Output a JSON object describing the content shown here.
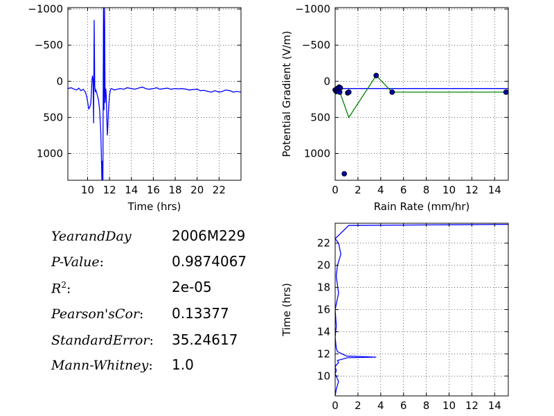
{
  "stats": [
    {
      "label": "YearandDay",
      "value": "2006M229",
      "colon": ""
    },
    {
      "label": "P-Value",
      "value": "0.9874067",
      "colon": ":"
    },
    {
      "label": "R",
      "sup": "2",
      "value": "2e-05",
      "colon": ":"
    },
    {
      "label": "Pearson'sCor",
      "value": "0.13377",
      "colon": ":"
    },
    {
      "label": "StandardError",
      "value": "35.24617",
      "colon": ":"
    },
    {
      "label": "Mann-Whitney",
      "value": "1.0",
      "colon": ":"
    }
  ],
  "chart_data": [
    {
      "id": "pg-time",
      "type": "line",
      "xlabel": "Time (hrs)",
      "ylabel": "",
      "xlim": [
        8.2,
        24
      ],
      "ylim": [
        1370,
        -1020
      ],
      "xticks": [
        10,
        12,
        14,
        16,
        18,
        20,
        22
      ],
      "yticks": [
        -1000,
        -500,
        0,
        500,
        1000
      ],
      "ytick_labels": [
        "−1000",
        "−500",
        "0",
        "500",
        "1000"
      ],
      "grid": true,
      "series": [
        {
          "color": "#0000ff",
          "x": [
            8.2,
            8.5,
            8.8,
            9.0,
            9.2,
            9.4,
            9.6,
            9.8,
            9.9,
            10.0,
            10.1,
            10.2,
            10.3,
            10.35,
            10.4,
            10.45,
            10.5,
            10.55,
            10.6,
            10.65,
            10.7,
            10.75,
            10.8,
            10.9,
            11.0,
            11.1,
            11.2,
            11.25,
            11.3,
            11.35,
            11.4,
            11.45,
            11.5,
            11.55,
            11.6,
            11.65,
            11.7,
            11.75,
            11.8,
            11.85,
            11.9,
            11.95,
            12.0,
            12.05,
            12.1,
            12.2,
            12.4,
            12.7,
            13.0,
            13.3,
            13.6,
            14.0,
            14.3,
            14.6,
            15.0,
            15.3,
            15.6,
            16.0,
            16.3,
            16.6,
            17.0,
            17.3,
            17.6,
            18.0,
            18.3,
            18.6,
            19.0,
            19.3,
            19.6,
            20.0,
            20.3,
            20.6,
            21.0,
            21.3,
            21.6,
            22.0,
            22.3,
            22.6,
            23.0,
            23.3,
            23.6,
            24.0
          ],
          "y": [
            100,
            90,
            110,
            120,
            95,
            130,
            110,
            150,
            200,
            280,
            380,
            360,
            300,
            150,
            -20,
            -80,
            0,
            580,
            -850,
            60,
            150,
            120,
            140,
            200,
            260,
            400,
            700,
            1000,
            1370,
            1100,
            1370,
            -1020,
            400,
            -1020,
            300,
            100,
            180,
            500,
            750,
            600,
            420,
            300,
            200,
            150,
            110,
            100,
            120,
            110,
            100,
            110,
            90,
            100,
            110,
            95,
            80,
            100,
            110,
            100,
            90,
            110,
            100,
            95,
            110,
            100,
            105,
            100,
            110,
            120,
            115,
            110,
            130,
            125,
            140,
            150,
            130,
            150,
            140,
            120,
            130,
            150,
            140,
            150
          ]
        }
      ]
    },
    {
      "id": "pg-rain",
      "type": "scatter",
      "xlabel": "Rain Rate (mm/hr)",
      "ylabel": "Potential Gradient (V/m)",
      "xlim": [
        0,
        15.2
      ],
      "ylim": [
        1370,
        -1020
      ],
      "xticks": [
        0,
        2,
        4,
        6,
        8,
        10,
        12,
        14
      ],
      "yticks": [
        -1000,
        -500,
        0,
        500,
        1000
      ],
      "ytick_labels": [
        "−1000",
        "−500",
        "0",
        "500",
        "1000"
      ],
      "grid": true,
      "points": {
        "x": [
          0.0,
          0.1,
          0.2,
          0.3,
          0.35,
          0.4,
          0.45,
          0.8,
          1.1,
          1.2,
          3.6,
          5.0,
          15.0
        ],
        "y": [
          120,
          140,
          100,
          130,
          80,
          150,
          90,
          1280,
          160,
          150,
          -80,
          150,
          150
        ]
      },
      "fit_line": {
        "color": "#0000ff",
        "x": [
          0,
          15.2
        ],
        "y": [
          100,
          100
        ]
      },
      "binned_line": {
        "color": "#008000",
        "x": [
          0.3,
          1.2,
          3.6,
          5.0,
          15.0
        ],
        "y": [
          100,
          500,
          -80,
          150,
          150
        ]
      }
    },
    {
      "id": "rain-time",
      "type": "line",
      "xlabel": "",
      "ylabel": "Time (hrs)",
      "xlim": [
        0,
        15.2
      ],
      "ylim": [
        8.2,
        23.8
      ],
      "xticks": [
        0,
        2,
        4,
        6,
        8,
        10,
        12,
        14
      ],
      "yticks": [
        10,
        12,
        14,
        16,
        18,
        20,
        22
      ],
      "ytick_labels": [
        "10",
        "12",
        "14",
        "16",
        "18",
        "20",
        "22"
      ],
      "grid": true,
      "series": [
        {
          "color": "#0000ff",
          "x": [
            0,
            0.1,
            0.3,
            0,
            0.1,
            0.0,
            0.1,
            0.2,
            0.3,
            0.2,
            1.1,
            3.6,
            1.0,
            0.2,
            0.1,
            0.0,
            0.1,
            0.0,
            0.3,
            0.1,
            0.2,
            0.5,
            0.3,
            0.0,
            1.2,
            15.2
          ],
          "y": [
            8.2,
            8.8,
            9.5,
            10.2,
            10.5,
            10.8,
            11.0,
            11.1,
            11.2,
            11.4,
            11.65,
            11.7,
            11.8,
            12.2,
            12.5,
            13.5,
            14.5,
            16.0,
            17.5,
            19.0,
            20.0,
            21.0,
            22.0,
            22.4,
            23.6,
            23.7
          ]
        }
      ]
    }
  ]
}
